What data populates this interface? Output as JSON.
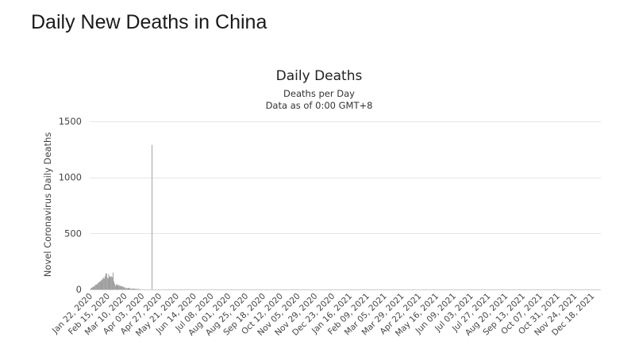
{
  "page": {
    "title": "Daily New Deaths in China"
  },
  "chart_data": {
    "type": "bar",
    "title": "Daily Deaths",
    "subtitle_lines": [
      "Deaths per Day",
      "Data as of 0:00 GMT+8"
    ],
    "ylabel": "Novel Coronavirus Daily Deaths",
    "xlabel": "",
    "ylim": [
      0,
      1500
    ],
    "yticks": [
      0,
      500,
      1000,
      1500
    ],
    "grid": true,
    "legend": "none",
    "bar_color": "#999999",
    "x_start": "2020-01-22",
    "x_end": "2021-12-31",
    "x_tick_labels": [
      "Jan 22, 2020",
      "Feb 15, 2020",
      "Mar 10, 2020",
      "Apr 03, 2020",
      "Apr 27, 2020",
      "May 21, 2020",
      "Jun 14, 2020",
      "Jul 08, 2020",
      "Aug 01, 2020",
      "Aug 25, 2020",
      "Sep 18, 2020",
      "Oct 12, 2020",
      "Nov 05, 2020",
      "Nov 29, 2020",
      "Dec 23, 2020",
      "Jan 16, 2021",
      "Feb 09, 2021",
      "Mar 05, 2021",
      "Mar 29, 2021",
      "Apr 22, 2021",
      "May 16, 2021",
      "Jun 09, 2021",
      "Jul 03, 2021",
      "Jul 27, 2021",
      "Aug 20, 2021",
      "Sep 13, 2021",
      "Oct 07, 2021",
      "Oct 31, 2021",
      "Nov 24, 2021",
      "Dec 18, 2021"
    ],
    "series": [
      {
        "x": [
          "2020-01-23",
          "2020-01-24",
          "2020-01-25",
          "2020-01-26",
          "2020-01-27",
          "2020-01-28",
          "2020-01-29",
          "2020-01-30",
          "2020-01-31",
          "2020-02-01",
          "2020-02-02",
          "2020-02-03",
          "2020-02-04",
          "2020-02-05",
          "2020-02-06",
          "2020-02-07",
          "2020-02-08",
          "2020-02-09",
          "2020-02-10",
          "2020-02-11",
          "2020-02-12",
          "2020-02-13",
          "2020-02-14",
          "2020-02-15",
          "2020-02-16",
          "2020-02-17",
          "2020-02-18",
          "2020-02-19",
          "2020-02-20",
          "2020-02-21",
          "2020-02-22",
          "2020-02-23",
          "2020-02-24",
          "2020-02-25",
          "2020-02-26",
          "2020-02-27",
          "2020-02-28",
          "2020-02-29",
          "2020-03-01",
          "2020-03-02",
          "2020-03-03",
          "2020-03-04",
          "2020-03-05",
          "2020-03-06",
          "2020-03-07",
          "2020-03-08",
          "2020-03-09",
          "2020-03-10",
          "2020-03-11",
          "2020-03-12",
          "2020-03-13",
          "2020-03-14",
          "2020-03-15",
          "2020-03-16",
          "2020-03-17",
          "2020-03-18",
          "2020-03-19",
          "2020-03-20",
          "2020-03-21",
          "2020-03-22",
          "2020-03-23",
          "2020-03-24",
          "2020-03-25",
          "2020-03-26",
          "2020-03-27",
          "2020-03-28",
          "2020-03-29",
          "2020-03-30",
          "2020-03-31",
          "2020-04-17"
        ],
        "values": [
          8,
          16,
          15,
          24,
          26,
          26,
          38,
          43,
          46,
          45,
          57,
          64,
          65,
          73,
          73,
          86,
          89,
          97,
          108,
          97,
          121,
          143,
          142,
          105,
          98,
          136,
          114,
          118,
          109,
          118,
          109,
          150,
          71,
          52,
          29,
          44,
          47,
          35,
          42,
          31,
          38,
          31,
          30,
          28,
          27,
          22,
          17,
          22,
          11,
          7,
          13,
          10,
          14,
          13,
          11,
          8,
          3,
          7,
          6,
          9,
          7,
          4,
          6,
          5,
          3,
          5,
          5,
          2,
          2,
          1290
        ]
      }
    ]
  }
}
